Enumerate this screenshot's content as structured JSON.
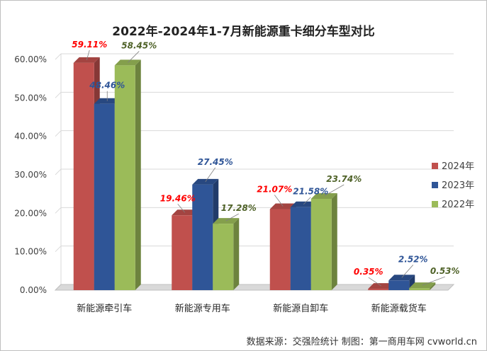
{
  "chart_data": {
    "type": "bar",
    "title": "2022年-2024年1-7月新能源重卡细分车型对比",
    "categories": [
      "新能源牵引车",
      "新能源专用车",
      "新能源自卸车",
      "新能源载货车"
    ],
    "series": [
      {
        "name": "2024年",
        "values": [
          59.11,
          19.46,
          21.07,
          0.35
        ],
        "labels": [
          "59.11%",
          "19.46%",
          "21.07%",
          "0.35%"
        ],
        "color": "#c0504d",
        "label_color": "#ff0000"
      },
      {
        "name": "2023年",
        "values": [
          48.46,
          27.45,
          21.58,
          2.52
        ],
        "labels": [
          "48.46%",
          "27.45%",
          "21.58%",
          "2.52%"
        ],
        "color": "#2f5597",
        "label_color": "#2f5597"
      },
      {
        "name": "2022年",
        "values": [
          58.45,
          17.28,
          23.74,
          0.53
        ],
        "labels": [
          "58.45%",
          "17.28%",
          "23.74%",
          "0.53%"
        ],
        "color": "#9bbb59",
        "label_color": "#4f6228"
      }
    ],
    "ylim": [
      0,
      60
    ],
    "yticks": [
      0,
      10,
      20,
      30,
      40,
      50,
      60
    ],
    "ytick_labels": [
      "0.00%",
      "10.00%",
      "20.00%",
      "30.00%",
      "40.00%",
      "50.00%",
      "60.00%"
    ],
    "grid": true,
    "legend_position": "right",
    "style": "3d-clustered-column"
  },
  "source_note": "数据来源：交强险统计  制图：第一商用车网 cvworld.cn"
}
